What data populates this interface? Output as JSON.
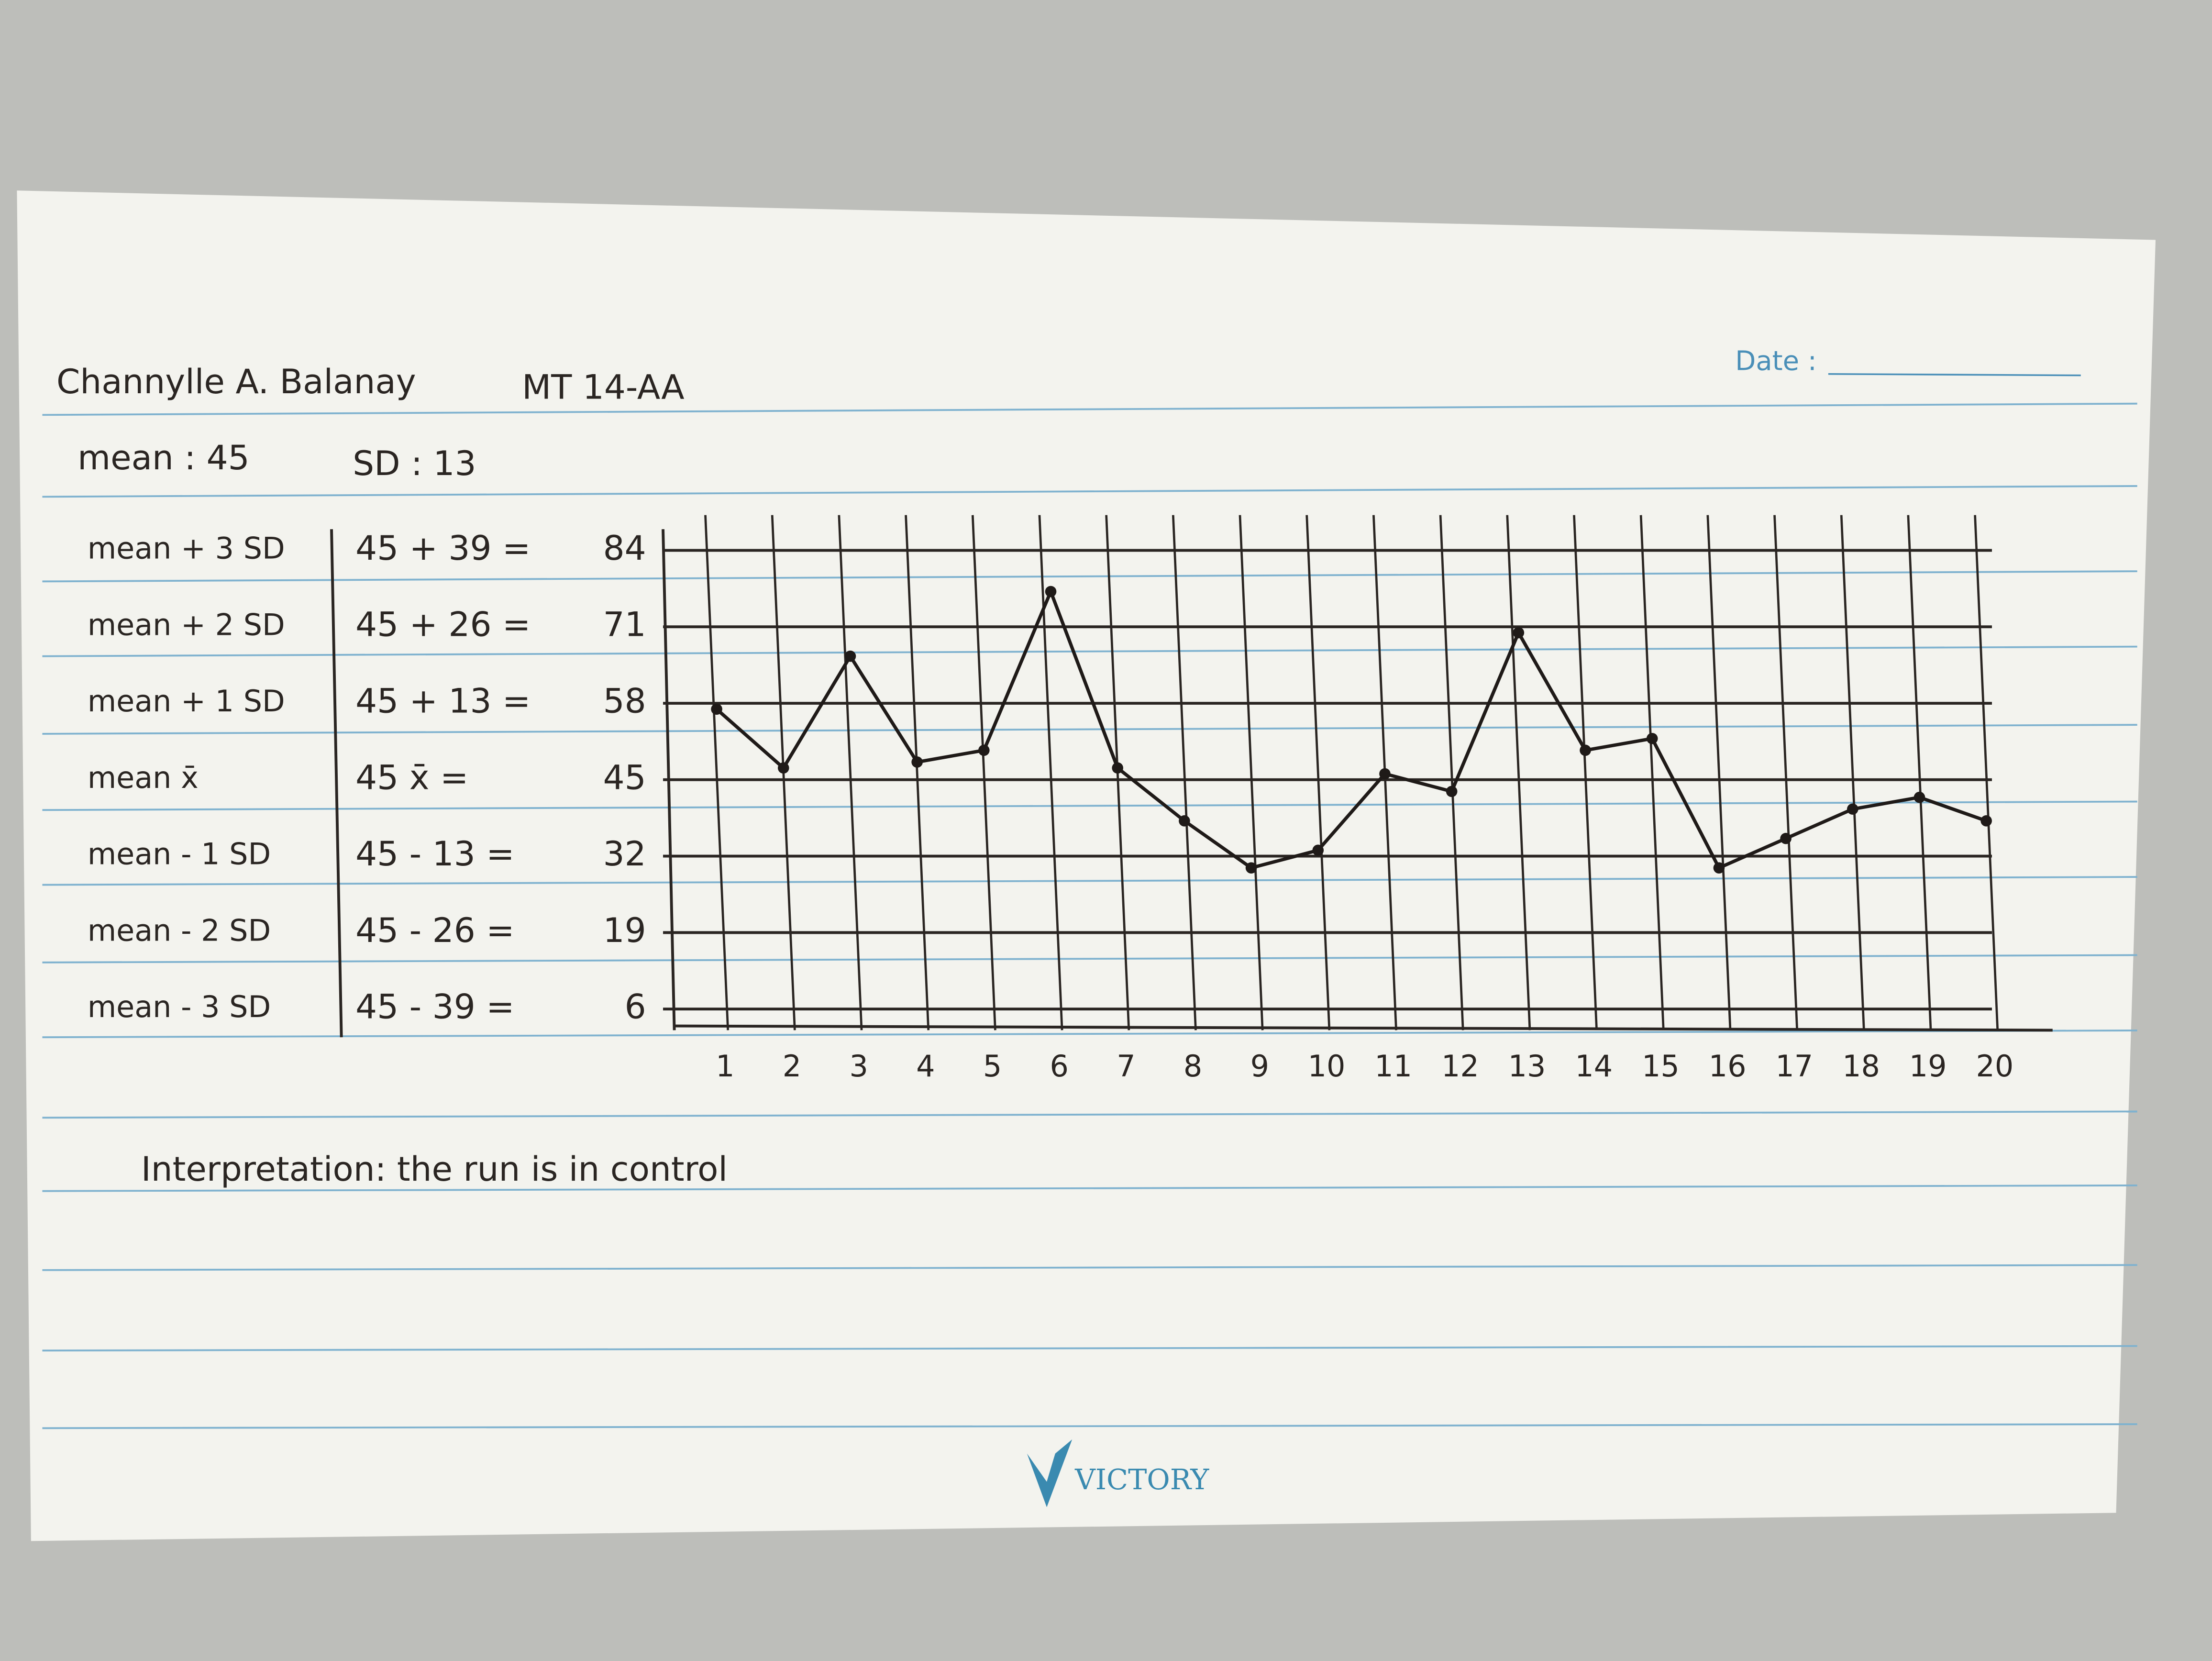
{
  "header": {
    "name": "Channylle A. Balanay",
    "section": "MT 14-AA",
    "date_label": "Date :"
  },
  "summary": {
    "mean_label": "mean : 45",
    "sd_label": "SD : 13"
  },
  "control_rows": [
    {
      "label": "mean + 3 SD",
      "formula": "45 + 39 ="
    },
    {
      "label": "mean + 2 SD",
      "formula": "45 + 26 ="
    },
    {
      "label": "mean + 1 SD",
      "formula": "45 + 13 ="
    },
    {
      "label": "mean x̄",
      "formula": "45 x̄ ="
    },
    {
      "label": "mean - 1 SD",
      "formula": "45 - 13 ="
    },
    {
      "label": "mean - 2 SD",
      "formula": "45 - 26 ="
    },
    {
      "label": "mean - 3 SD",
      "formula": "45 - 39 ="
    }
  ],
  "chart_data": {
    "type": "line",
    "categories": [
      "1",
      "2",
      "3",
      "4",
      "5",
      "6",
      "7",
      "8",
      "9",
      "10",
      "11",
      "12",
      "13",
      "14",
      "15",
      "16",
      "17",
      "18",
      "19",
      "20"
    ],
    "values": [
      57,
      47,
      66,
      48,
      50,
      77,
      47,
      38,
      30,
      33,
      46,
      43,
      70,
      50,
      52,
      30,
      35,
      40,
      42,
      38
    ],
    "color": "#1f1a18",
    "ylim": [
      6,
      84
    ],
    "yticks": [
      84,
      71,
      58,
      45,
      32,
      19,
      6
    ],
    "grid": true
  },
  "interpretation": "Interpretation: the run is in control",
  "brand": "VICTORY"
}
